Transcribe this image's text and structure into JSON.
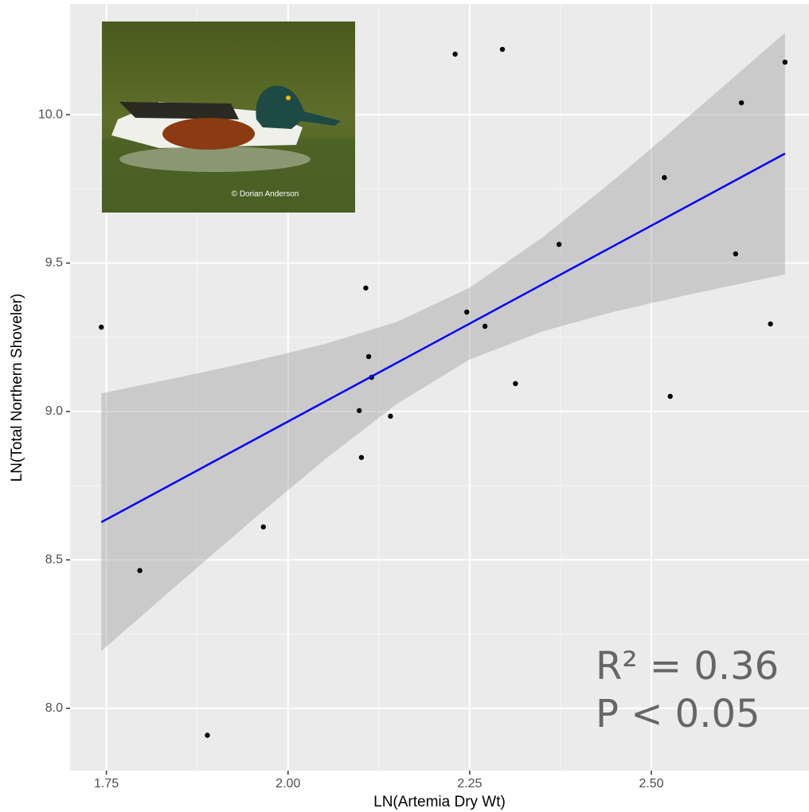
{
  "chart_data": {
    "type": "scatter",
    "x_label": "LN(Artemia Dry Wt)",
    "y_label": "LN(Total Northern Shoveler)",
    "xlim": [
      1.7,
      2.717
    ],
    "ylim": [
      7.79,
      10.373
    ],
    "xticks": [
      {
        "value": 1.75,
        "label": "1.75"
      },
      {
        "value": 2.0,
        "label": "2.00"
      },
      {
        "value": 2.25,
        "label": "2.25"
      },
      {
        "value": 2.5,
        "label": "2.50"
      }
    ],
    "yticks": [
      {
        "value": 8.0,
        "label": "8.0"
      },
      {
        "value": 8.5,
        "label": "8.5"
      },
      {
        "value": 9.0,
        "label": "9.0"
      },
      {
        "value": 9.5,
        "label": "9.5"
      },
      {
        "value": 10.0,
        "label": "10.0"
      }
    ],
    "grid": true,
    "series": [
      {
        "color": "#000000",
        "x": [
          1.743,
          1.796,
          1.889,
          1.966,
          2.098,
          2.101,
          2.107,
          2.111,
          2.115,
          2.141,
          2.23,
          2.246,
          2.271,
          2.295,
          2.313,
          2.373,
          2.518,
          2.526,
          2.616,
          2.624,
          2.664,
          2.684
        ],
        "values": [
          9.284,
          8.464,
          7.909,
          8.611,
          9.003,
          8.845,
          9.416,
          9.185,
          9.115,
          8.984,
          10.204,
          9.335,
          9.287,
          10.22,
          9.094,
          9.563,
          9.788,
          9.051,
          9.531,
          10.04,
          9.295,
          10.177
        ]
      }
    ],
    "fit": {
      "color": "#0000ff",
      "x": [
        1.743,
        2.684
      ],
      "values": [
        8.627,
        9.869
      ]
    },
    "band": {
      "color": "#999999",
      "x": [
        1.743,
        1.85,
        1.95,
        2.05,
        2.15,
        2.25,
        2.35,
        2.45,
        2.55,
        2.684
      ],
      "upper": [
        9.061,
        9.115,
        9.168,
        9.227,
        9.302,
        9.417,
        9.586,
        9.783,
        9.991,
        10.276
      ],
      "lower": [
        8.193,
        8.421,
        8.632,
        8.837,
        9.026,
        9.175,
        9.27,
        9.337,
        9.393,
        9.462
      ]
    },
    "annotations": [
      "R² = 0.36",
      "P < 0.05"
    ],
    "inset_credit": "© Dorian Anderson"
  }
}
